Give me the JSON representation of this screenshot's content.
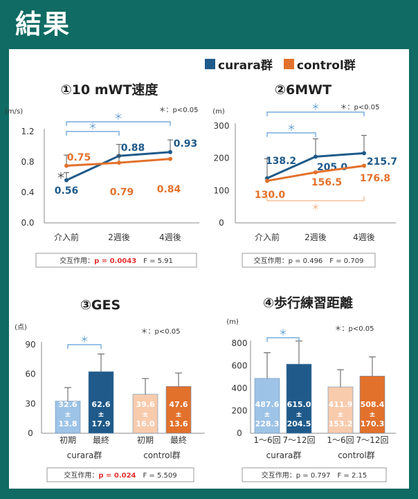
{
  "title": "結果",
  "legend": {
    "items": [
      {
        "label": "curara群",
        "color": "#1f5a8a"
      },
      {
        "label": "control群",
        "color": "#e2712c"
      }
    ]
  },
  "sig_note": "＊：p<0.05",
  "colors": {
    "curara_dark": "#1f5a8a",
    "control_dark": "#e2712c",
    "curara_light": "#9dc3e6",
    "control_light": "#f8cbad",
    "bracket_blue": "#5b9bd5",
    "bracket_orange": "#f4b183"
  },
  "chart_data": [
    {
      "id": "c1",
      "type": "line",
      "title": "①10 mWT速度",
      "ylabel": "(m/s)",
      "ylim": [
        0,
        1.2
      ],
      "yticks": [
        "0.0",
        "0.4",
        "0.8",
        "1.2"
      ],
      "categories": [
        "介入前",
        "2週後",
        "4週後"
      ],
      "series": [
        {
          "name": "curara群",
          "values": [
            0.56,
            0.88,
            0.93
          ],
          "labels": [
            "0.56",
            "0.88",
            "0.93"
          ]
        },
        {
          "name": "control群",
          "values": [
            0.75,
            0.79,
            0.84
          ],
          "labels": [
            "0.75",
            "0.79",
            "0.84"
          ]
        }
      ],
      "significance": [
        {
          "from": 0,
          "to": 1,
          "label": "＊"
        },
        {
          "from": 0,
          "to": 2,
          "label": "＊"
        }
      ],
      "marker_left": "＊",
      "stats": {
        "prefix": "交互作用：",
        "p": "p = 0.0043",
        "p_significant": true,
        "f": "F = 5.91"
      }
    },
    {
      "id": "c2",
      "type": "line",
      "title": "②6MWT",
      "ylabel": "(m)",
      "ylim": [
        0,
        300
      ],
      "yticks": [
        "0",
        "100",
        "200",
        "300"
      ],
      "categories": [
        "介入前",
        "2週後",
        "4週後"
      ],
      "series": [
        {
          "name": "curara群",
          "values": [
            138.2,
            205.0,
            215.7
          ],
          "labels": [
            "138.2",
            "205.0",
            "215.7"
          ]
        },
        {
          "name": "control群",
          "values": [
            130.0,
            156.5,
            176.8
          ],
          "labels": [
            "130.0",
            "156.5",
            "176.8"
          ]
        }
      ],
      "significance": [
        {
          "from": 0,
          "to": 1,
          "label": "＊"
        },
        {
          "from": 0,
          "to": 2,
          "label": "＊"
        }
      ],
      "significance_control": [
        {
          "from": 0,
          "to": 2,
          "label": "＊"
        }
      ],
      "stats": {
        "prefix": "交互作用：",
        "p": "p = 0.496",
        "p_significant": false,
        "f": "F = 0.709"
      }
    },
    {
      "id": "c3",
      "type": "bar",
      "title": "③GES",
      "ylabel": "(点)",
      "ylim": [
        0,
        90
      ],
      "yticks": [
        "0",
        "30",
        "60",
        "90"
      ],
      "categories": [
        "初期",
        "最終",
        "初期",
        "最終"
      ],
      "groups": [
        "curara群",
        "control群"
      ],
      "values": [
        32.6,
        62.6,
        39.6,
        47.6
      ],
      "sd": [
        13.8,
        17.9,
        16.0,
        13.6
      ],
      "value_labels": [
        {
          "mean": "32.6",
          "pm": "±",
          "sd": "13.8"
        },
        {
          "mean": "62.6",
          "pm": "±",
          "sd": "17.9"
        },
        {
          "mean": "39.6",
          "pm": "±",
          "sd": "16.0"
        },
        {
          "mean": "47.6",
          "pm": "±",
          "sd": "13.6"
        }
      ],
      "significance": [
        {
          "from": 0,
          "to": 1,
          "label": "＊"
        }
      ],
      "stats": {
        "prefix": "交互作用：",
        "p": "p = 0.024",
        "p_significant": true,
        "f": "F = 5.509"
      }
    },
    {
      "id": "c4",
      "type": "bar",
      "title": "④歩行練習距離",
      "ylabel": "(m)",
      "ylim": [
        0,
        800
      ],
      "yticks": [
        "0",
        "200",
        "400",
        "600",
        "800"
      ],
      "categories": [
        "1～6回",
        "7～12回",
        "1～6回",
        "7～12回"
      ],
      "groups": [
        "curara群",
        "control群"
      ],
      "values": [
        487.6,
        615.0,
        411.9,
        508.4
      ],
      "sd": [
        228.3,
        204.5,
        153.2,
        170.3
      ],
      "value_labels": [
        {
          "mean": "487.6",
          "pm": "±",
          "sd": "228.3"
        },
        {
          "mean": "615.0",
          "pm": "±",
          "sd": "204.5"
        },
        {
          "mean": "411.9",
          "pm": "±",
          "sd": "153.2"
        },
        {
          "mean": "508.4",
          "pm": "±",
          "sd": "170.3"
        }
      ],
      "significance": [
        {
          "from": 0,
          "to": 1,
          "label": "＊"
        }
      ],
      "stats": {
        "prefix": "交互作用：",
        "p": "p = 0.797",
        "p_significant": false,
        "f": "F = 2.15"
      }
    }
  ]
}
